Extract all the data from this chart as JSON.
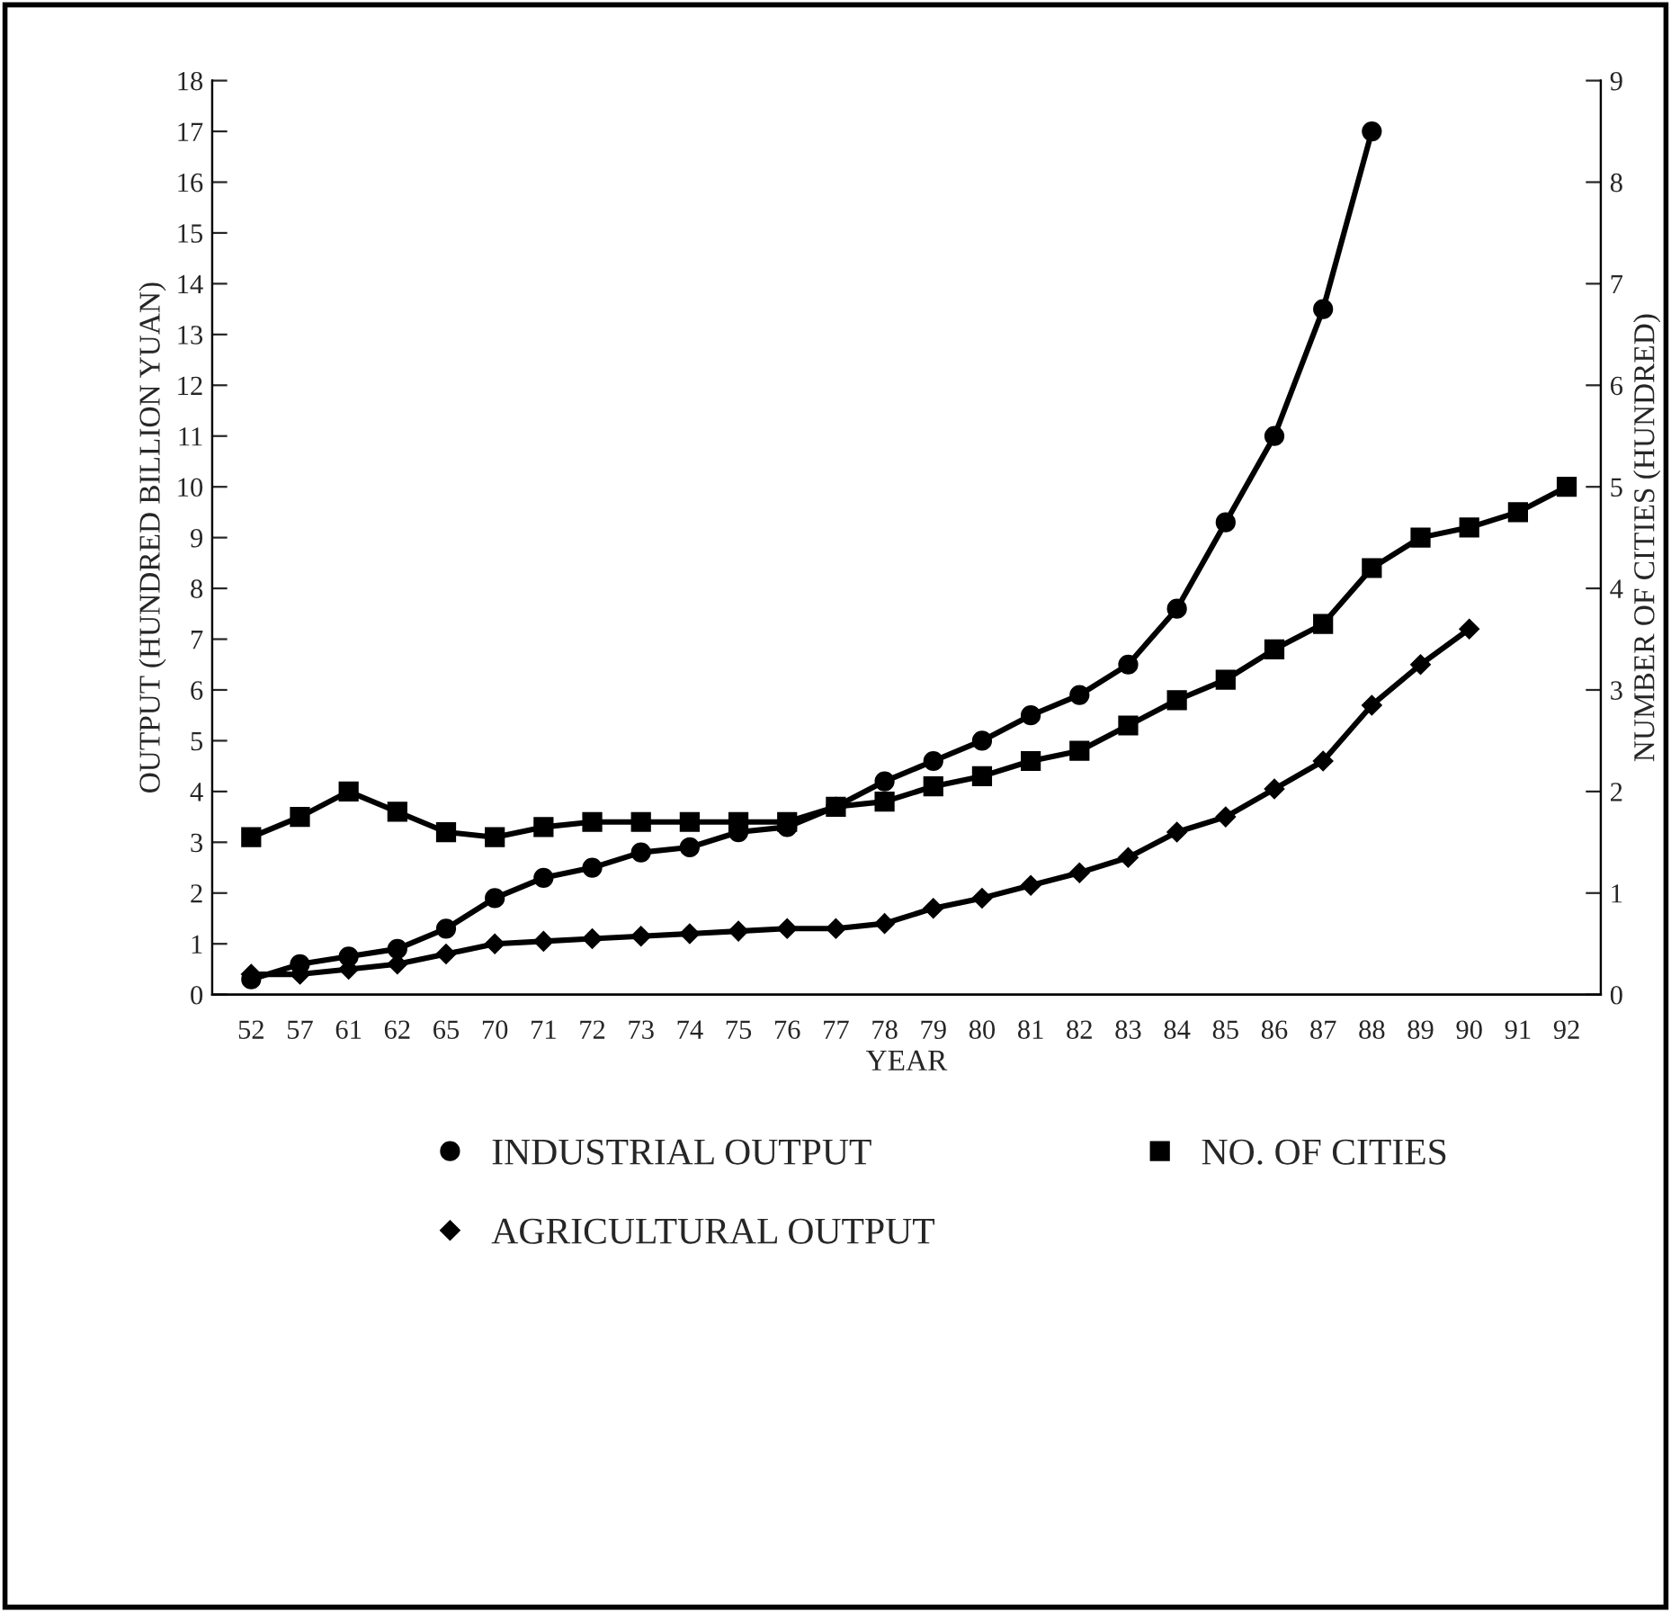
{
  "chart_data": {
    "type": "line",
    "xlabel": "YEAR",
    "ylabel": "OUTPUT (HUNDRED BILLION YUAN)",
    "y2label": "NUMBER OF CITIES (HUNDRED)",
    "categories": [
      "52",
      "57",
      "61",
      "62",
      "65",
      "70",
      "71",
      "72",
      "73",
      "74",
      "75",
      "76",
      "77",
      "78",
      "79",
      "80",
      "81",
      "82",
      "83",
      "84",
      "85",
      "86",
      "87",
      "88",
      "89",
      "90",
      "91",
      "92"
    ],
    "series": [
      {
        "name": "INDUSTRIAL OUTPUT",
        "color": "#000000",
        "marker": "circle",
        "values": [
          0.3,
          0.6,
          0.75,
          0.9,
          1.3,
          1.9,
          2.3,
          2.5,
          2.8,
          2.9,
          3.2,
          3.3,
          3.7,
          4.2,
          4.6,
          5.0,
          5.5,
          5.9,
          6.5,
          7.6,
          9.3,
          11.0,
          13.5,
          17.0,
          null,
          null,
          null,
          null
        ]
      },
      {
        "name": "AGRICULTURAL OUTPUT",
        "color": "#000000",
        "marker": "diamond",
        "values": [
          0.4,
          0.4,
          0.5,
          0.6,
          0.8,
          1.0,
          1.05,
          1.1,
          1.15,
          1.2,
          1.25,
          1.3,
          1.3,
          1.4,
          1.7,
          1.9,
          2.15,
          2.4,
          2.7,
          3.2,
          3.5,
          4.05,
          4.6,
          5.7,
          6.5,
          7.2,
          null,
          null
        ]
      },
      {
        "name": "NO. OF CITIES",
        "color": "#000000",
        "marker": "square",
        "axis": "y2",
        "values": [
          1.55,
          1.75,
          2.0,
          1.8,
          1.6,
          1.55,
          1.65,
          1.7,
          1.7,
          1.7,
          1.7,
          1.7,
          1.85,
          1.9,
          2.05,
          2.15,
          2.3,
          2.4,
          2.65,
          2.9,
          3.1,
          3.4,
          3.65,
          4.2,
          4.5,
          4.6,
          4.75,
          5.0
        ]
      }
    ],
    "ylim": [
      0,
      18
    ],
    "yticks": [
      0,
      1,
      2,
      3,
      4,
      5,
      6,
      7,
      8,
      9,
      10,
      11,
      12,
      13,
      14,
      15,
      16,
      17,
      18
    ],
    "y2lim": [
      0,
      9
    ],
    "y2ticks": [
      0,
      1,
      2,
      3,
      4,
      5,
      6,
      7,
      8,
      9
    ],
    "grid": false,
    "legend": "bottom",
    "line_style": "solid"
  }
}
